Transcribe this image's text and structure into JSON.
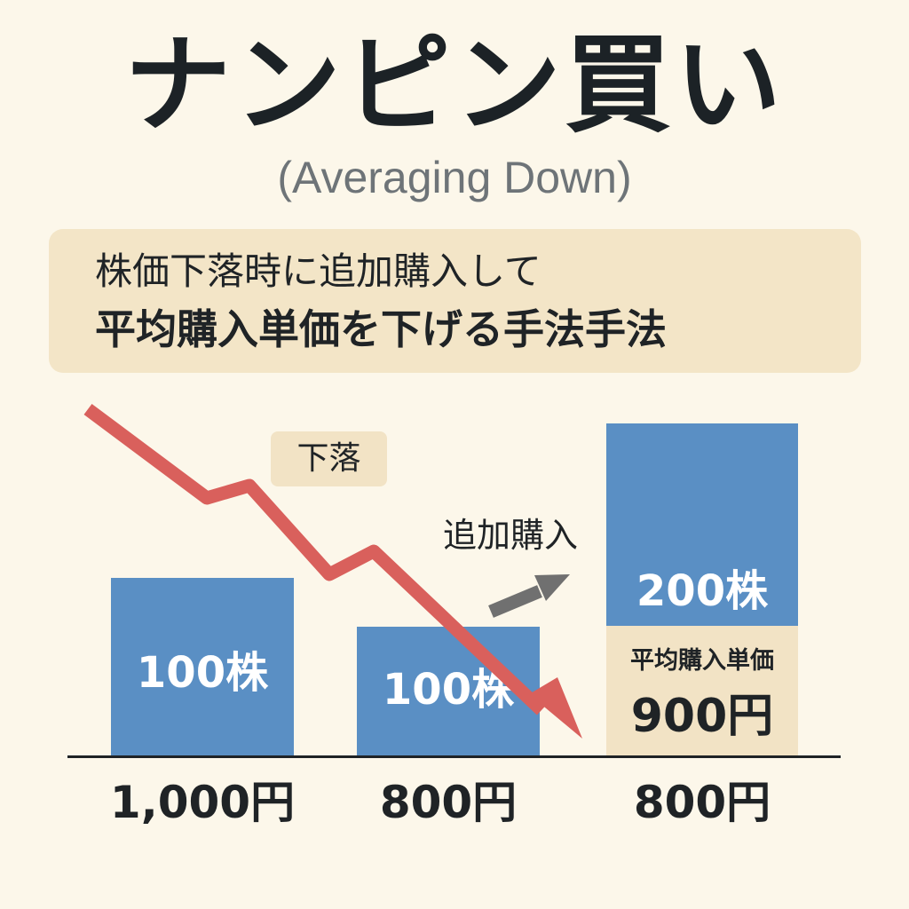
{
  "title": "ナンピン買い",
  "subtitle": "(Averaging Down)",
  "description": {
    "line1": "株価下落時に追加購入して",
    "line2": "平均購入単価を下げる手法手法"
  },
  "labels": {
    "fall": "下落",
    "additional_purchase": "追加購入"
  },
  "steps": [
    {
      "price": "1,000円",
      "shares": "100株"
    },
    {
      "price": "800円",
      "shares": "100株"
    },
    {
      "price": "800円",
      "shares": "200株"
    }
  ],
  "average": {
    "label": "平均購入単価",
    "value": "900円"
  },
  "icons": {
    "falling_trend": "falling-trend-arrow-icon",
    "add": "arrow-up-right-icon"
  },
  "colors": {
    "background": "#fcf7ea",
    "bar": "#5a8fc4",
    "highlight_box": "#f2e3c5",
    "trend_arrow": "#d9605c",
    "add_arrow": "#707070",
    "text": "#1f2326"
  }
}
